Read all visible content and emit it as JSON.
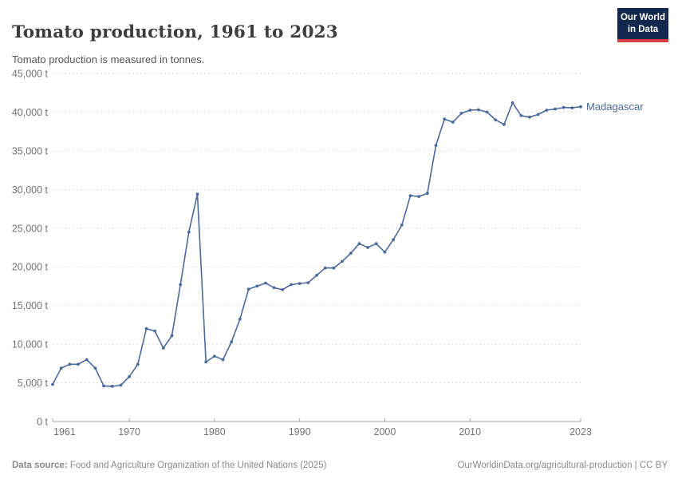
{
  "header": {
    "logo_line1": "Our World",
    "logo_line2": "in Data"
  },
  "colors": {
    "line": "#4c6a9c",
    "grid": "#dcdcdc",
    "axis": "#a3a3a3",
    "tick_label": "#737373",
    "logo_background": "#12294d",
    "logo_bar": "#d43d3d",
    "title_text": "#3d3d3d",
    "subtitle_text": "#565656",
    "footer_text": "#8a8a8a"
  },
  "chart_data": {
    "type": "line",
    "title": "Tomato production, 1961 to 2023",
    "subtitle": "Tomato production is measured in tonnes.",
    "xlabel": "",
    "ylabel": "",
    "unit": "t",
    "grid": "horizontal-dashed",
    "legend_position": "end-of-line-label",
    "xlim": [
      1961,
      2023
    ],
    "ylim": [
      0,
      45000
    ],
    "yticks": [
      0,
      5000,
      10000,
      15000,
      20000,
      25000,
      30000,
      35000,
      40000,
      45000
    ],
    "ytick_suffix": " t",
    "xticks": [
      1961,
      1970,
      1980,
      1990,
      2000,
      2010,
      2023
    ],
    "series": [
      {
        "name": "Madagascar",
        "color": "#4c6a9c",
        "x": [
          1961,
          1962,
          1963,
          1964,
          1965,
          1966,
          1967,
          1968,
          1969,
          1970,
          1971,
          1972,
          1973,
          1974,
          1975,
          1976,
          1977,
          1978,
          1979,
          1980,
          1981,
          1982,
          1983,
          1984,
          1985,
          1986,
          1987,
          1988,
          1989,
          1990,
          1991,
          1992,
          1993,
          1994,
          1995,
          1996,
          1997,
          1998,
          1999,
          2000,
          2001,
          2002,
          2003,
          2004,
          2005,
          2006,
          2007,
          2008,
          2009,
          2010,
          2011,
          2012,
          2013,
          2014,
          2015,
          2016,
          2017,
          2018,
          2019,
          2020,
          2021,
          2022,
          2023
        ],
        "values": [
          4800,
          6900,
          7400,
          7400,
          8000,
          6900,
          4600,
          4550,
          4700,
          5800,
          7400,
          12000,
          11700,
          9500,
          11100,
          17700,
          24500,
          29400,
          7700,
          8450,
          8000,
          10300,
          13250,
          17100,
          17500,
          17900,
          17300,
          17050,
          17700,
          17850,
          17950,
          18900,
          19850,
          19850,
          20700,
          21750,
          23000,
          22500,
          23000,
          21900,
          23500,
          25400,
          29200,
          29100,
          29500,
          35700,
          39100,
          38700,
          39850,
          40250,
          40300,
          40000,
          39000,
          38400,
          41200,
          39550,
          39350,
          39700,
          40250,
          40400,
          40600,
          40550,
          40700
        ]
      }
    ]
  },
  "footer": {
    "source_label": "Data source:",
    "source_text": " Food and Agriculture Organization of the United Nations (2025)",
    "link_text": "OurWorldinData.org/agricultural-production | CC BY"
  }
}
